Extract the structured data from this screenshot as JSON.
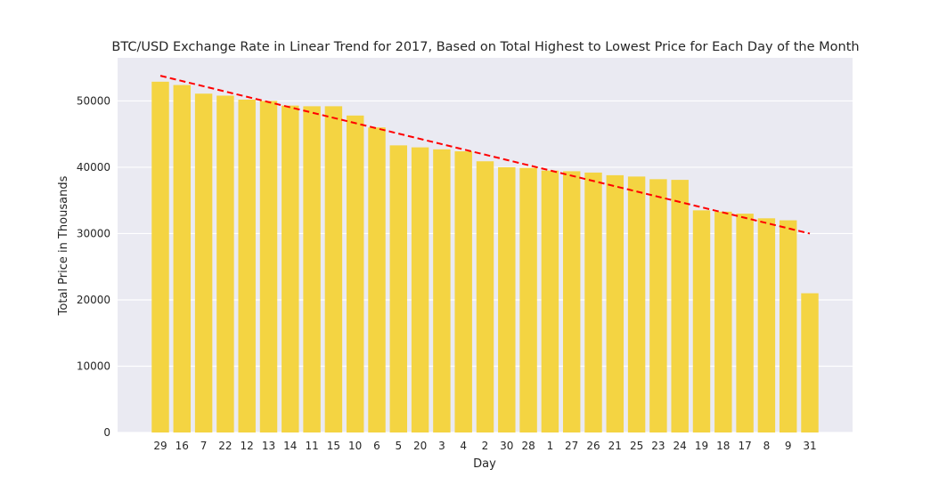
{
  "chart_data": {
    "type": "bar",
    "title": "BTC/USD Exchange Rate in Linear Trend for 2017, Based on Total Highest to Lowest Price for Each Day of the Month",
    "xlabel": "Day",
    "ylabel": "Total Price in Thousands",
    "categories": [
      "29",
      "16",
      "7",
      "22",
      "12",
      "13",
      "14",
      "11",
      "15",
      "10",
      "6",
      "5",
      "20",
      "3",
      "4",
      "2",
      "30",
      "28",
      "1",
      "27",
      "26",
      "21",
      "25",
      "23",
      "24",
      "19",
      "18",
      "17",
      "8",
      "9",
      "31"
    ],
    "values": [
      52900,
      52400,
      51100,
      50800,
      50200,
      50000,
      49300,
      49200,
      49200,
      47800,
      46000,
      43300,
      43000,
      42700,
      42400,
      40900,
      40000,
      39900,
      39500,
      39400,
      39200,
      38800,
      38600,
      38200,
      38100,
      33500,
      33300,
      33000,
      32300,
      32000,
      21000
    ],
    "ylim": [
      0,
      56500
    ],
    "yticks": [
      0,
      10000,
      20000,
      30000,
      40000,
      50000
    ],
    "grid": true,
    "bar_color": "#f4d442",
    "background": "#eaeaf2",
    "trend_line": {
      "style": "dashed",
      "color": "#ff0000",
      "start": 53800,
      "end": 30000
    }
  }
}
